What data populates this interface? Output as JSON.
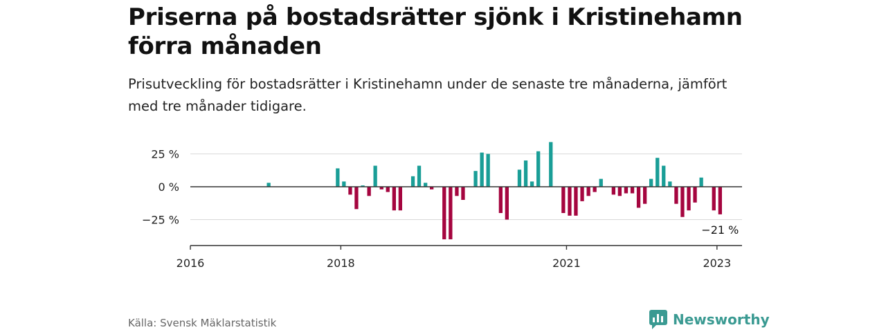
{
  "header": {
    "title": "Priserna på bostadsrätter sjönk i Kristinehamn förra månaden",
    "subtitle": "Prisutveckling för bostadsrätter i Kristinehamn under de senaste tre månaderna, jämfört med tre månader tidigare."
  },
  "footer": {
    "source": "Källa: Svensk Mäklarstatistik",
    "brand": "Newsworthy"
  },
  "colors": {
    "positive": "#1a9e97",
    "negative": "#a5053f",
    "brand": "#3a9a92"
  },
  "icons": {
    "brand": "bar-chart-logo-icon"
  },
  "chart_data": {
    "type": "bar",
    "unit": "%",
    "ylim": [
      -45,
      40
    ],
    "yticks": [
      25,
      0,
      -25
    ],
    "ytick_labels": [
      "25 %",
      "0 %",
      "−25 %"
    ],
    "xlim": [
      "2016-01",
      "2023-04"
    ],
    "xticks": [
      "2016",
      "2018",
      "2021",
      "2023"
    ],
    "annotation": "−21 %",
    "grid": true,
    "series": [
      {
        "x": [
          "2017-01",
          "2017-02",
          "2017-03",
          "2017-04",
          "2017-05",
          "2017-06",
          "2017-07",
          "2017-08",
          "2017-09",
          "2017-10",
          "2017-11",
          "2017-12",
          "2018-01",
          "2018-02",
          "2018-03",
          "2018-04",
          "2018-05",
          "2018-06",
          "2018-07",
          "2018-08",
          "2018-09",
          "2018-10",
          "2018-11",
          "2018-12",
          "2019-01",
          "2019-02",
          "2019-03",
          "2019-04",
          "2019-05",
          "2019-06",
          "2019-07",
          "2019-08",
          "2019-09",
          "2019-10",
          "2019-11",
          "2019-12",
          "2020-01",
          "2020-02",
          "2020-03",
          "2020-04",
          "2020-05",
          "2020-06",
          "2020-07",
          "2020-08",
          "2020-09",
          "2020-10",
          "2020-11",
          "2020-12",
          "2021-01",
          "2021-02",
          "2021-03",
          "2021-04",
          "2021-05",
          "2021-06",
          "2021-07",
          "2021-08",
          "2021-09",
          "2021-10",
          "2021-11",
          "2021-12",
          "2022-01",
          "2022-02",
          "2022-03",
          "2022-04",
          "2022-05",
          "2022-06",
          "2022-07",
          "2022-08",
          "2022-09",
          "2022-10",
          "2022-11",
          "2022-12",
          "2023-01"
        ],
        "values": [
          3,
          0,
          0,
          0,
          0,
          0,
          0,
          0,
          0,
          0,
          0,
          14,
          4,
          -6,
          -17,
          1,
          -7,
          16,
          -2,
          -4,
          -18,
          -18,
          0,
          8,
          16,
          3,
          -2,
          0,
          -40,
          -40,
          -7,
          -10,
          0,
          12,
          26,
          25,
          0,
          -20,
          -25,
          0,
          13,
          20,
          4,
          27,
          0,
          34,
          0,
          -20,
          -22,
          -22,
          -11,
          -7,
          -4,
          6,
          0,
          -6,
          -7,
          -5,
          -5,
          -16,
          -13,
          6,
          22,
          16,
          4,
          -13,
          -23,
          -18,
          -12,
          7,
          0,
          -18,
          -21
        ]
      }
    ]
  }
}
